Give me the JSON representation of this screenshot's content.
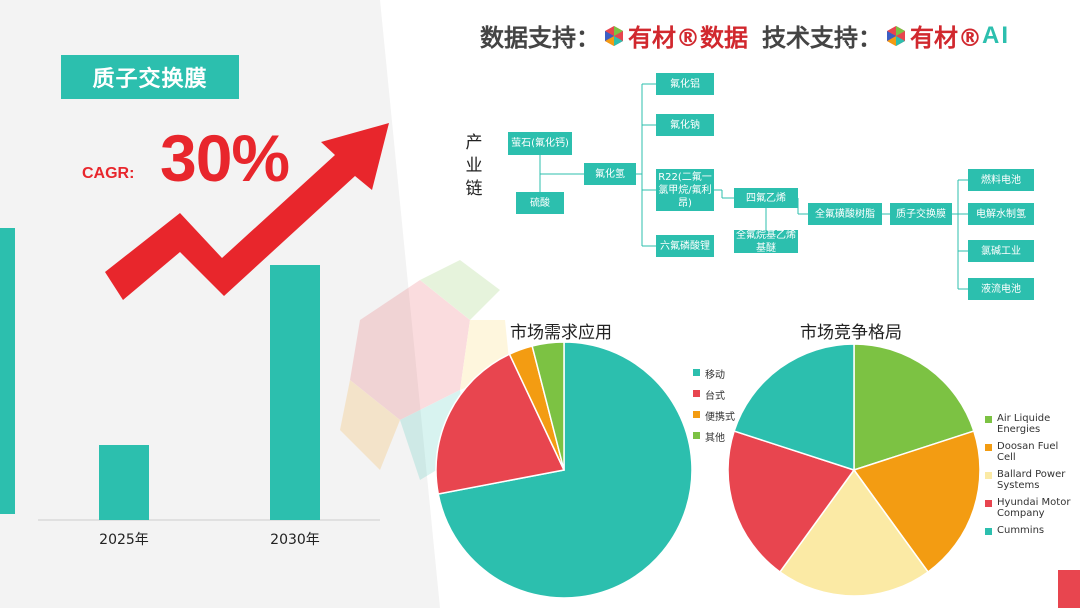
{
  "header": {
    "data_support_label": "数据支持：",
    "data_brand": "有材®数据",
    "tech_support_label": "技术支持：",
    "tech_brand": "有材®",
    "tech_ai": "AI"
  },
  "colors": {
    "teal": "#2cbfae",
    "red": "#e8454f",
    "orange": "#f39c12",
    "green": "#7cc243",
    "yellow": "#fbeaa5",
    "arrow_red": "#e8262c"
  },
  "left": {
    "title": "质子交换膜",
    "cagr_label": "CAGR:",
    "cagr_value": "30%"
  },
  "chain": {
    "label": [
      "产",
      "业",
      "链"
    ],
    "nodes": {
      "fluorite": "萤石(氟化钙)",
      "sulfuric_acid": "硫酸",
      "hf": "氟化氢",
      "alf3": "氟化铝",
      "naf": "氟化钠",
      "r22": "R22(二氟一氯甲烷/氟利昂)",
      "lipf6": "六氟磷酸锂",
      "tfe": "四氟乙烯",
      "pfve": "全氟烷基乙烯基醚",
      "pfsa": "全氟磺酸树脂",
      "pem": "质子交换膜",
      "fuel_cell": "燃料电池",
      "electrolysis": "电解水制氢",
      "chlor_alkali": "氯碱工业",
      "flow_battery": "液流电池"
    }
  },
  "chart_data": [
    {
      "type": "bar",
      "categories": [
        "2025年",
        "2030年"
      ],
      "values": [
        1,
        3.4
      ],
      "title": "",
      "xlabel": "",
      "ylabel": "",
      "color": "#2cbfae"
    },
    {
      "type": "pie",
      "title": "市场需求应用",
      "labels": [
        "移动",
        "台式",
        "便携式",
        "其他"
      ],
      "values": [
        72,
        21,
        3,
        4
      ],
      "colors": [
        "#2cbfae",
        "#e8454f",
        "#f39c12",
        "#7cc243"
      ],
      "legend": "right"
    },
    {
      "type": "pie",
      "title": "市场竞争格局",
      "labels": [
        "Air Liquide Energies",
        "Doosan Fuel Cell",
        "Ballard Power Systems",
        "Hyundai Motor Company",
        "Cummins"
      ],
      "values": [
        20,
        20,
        20,
        20,
        20
      ],
      "colors": [
        "#7cc243",
        "#f39c12",
        "#fbeaa5",
        "#e8454f",
        "#2cbfae"
      ],
      "legend": "right"
    }
  ]
}
